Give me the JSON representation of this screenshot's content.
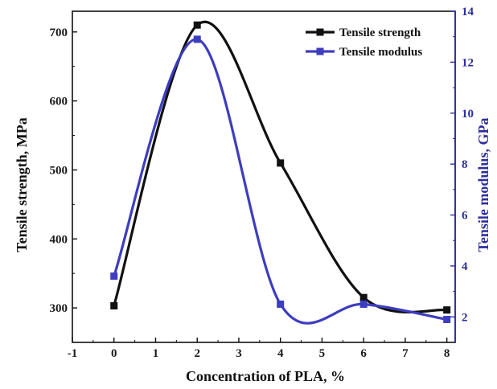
{
  "chart_data": {
    "type": "line",
    "title": "",
    "xlabel": "Concentration of PLA, %",
    "ylabel": "Tensile strength, MPa",
    "y2label": "Tensile modulus, GPa",
    "xlim": [
      -1,
      8.2
    ],
    "ylim": [
      250,
      730
    ],
    "y2lim": [
      1.0,
      14.0
    ],
    "xticks": [
      "-1",
      "0",
      "1",
      "2",
      "3",
      "4",
      "5",
      "6",
      "7",
      "8"
    ],
    "yticks": [
      "300",
      "400",
      "500",
      "600",
      "700"
    ],
    "y2ticks": [
      "2",
      "4",
      "6",
      "8",
      "10",
      "12",
      "14"
    ],
    "grid": false,
    "legend_position": "top-right",
    "series": [
      {
        "name": "Tensile strength",
        "axis": "left",
        "color": "#111111",
        "marker": "square",
        "x": [
          0,
          2,
          4,
          6,
          8
        ],
        "values": [
          303,
          710,
          510,
          315,
          297
        ]
      },
      {
        "name": "Tensile modulus",
        "axis": "right",
        "color": "#3d3dbf",
        "marker": "square",
        "x": [
          0,
          2,
          4,
          6,
          8
        ],
        "values": [
          3.6,
          12.9,
          2.5,
          2.5,
          1.9
        ]
      }
    ]
  }
}
